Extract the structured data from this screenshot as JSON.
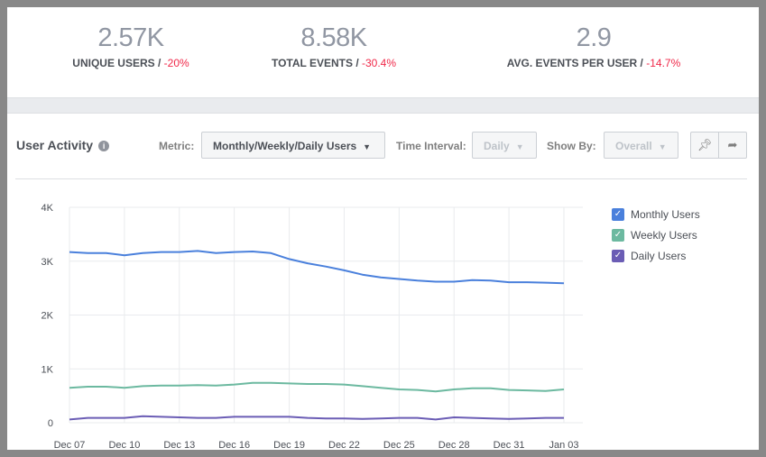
{
  "stats": [
    {
      "value": "2.57K",
      "label": "UNIQUE USERS",
      "change": "-20%"
    },
    {
      "value": "8.58K",
      "label": "TOTAL EVENTS",
      "change": "-30.4%"
    },
    {
      "value": "2.9",
      "label": "AVG. EVENTS PER USER",
      "change": "-14.7%"
    }
  ],
  "header": {
    "title": "User Activity",
    "info_icon": "i",
    "metric_label": "Metric:",
    "metric_value": "Monthly/Weekly/Daily Users",
    "interval_label": "Time Interval:",
    "interval_value": "Daily",
    "showby_label": "Show By:",
    "showby_value": "Overall",
    "pin_icon": "pin-icon",
    "share_icon": "share-icon"
  },
  "chart_data": {
    "type": "line",
    "x": [
      "Dec 07",
      "Dec 08",
      "Dec 09",
      "Dec 10",
      "Dec 11",
      "Dec 12",
      "Dec 13",
      "Dec 14",
      "Dec 15",
      "Dec 16",
      "Dec 17",
      "Dec 18",
      "Dec 19",
      "Dec 20",
      "Dec 21",
      "Dec 22",
      "Dec 23",
      "Dec 24",
      "Dec 25",
      "Dec 26",
      "Dec 27",
      "Dec 28",
      "Dec 29",
      "Dec 30",
      "Dec 31",
      "Jan 01",
      "Jan 02",
      "Jan 03"
    ],
    "xticks": [
      "Dec 07",
      "Dec 10",
      "Dec 13",
      "Dec 16",
      "Dec 19",
      "Dec 22",
      "Dec 25",
      "Dec 28",
      "Dec 31",
      "Jan 03"
    ],
    "yticks": [
      "0",
      "1K",
      "2K",
      "3K",
      "4K"
    ],
    "ylim": [
      0,
      4000
    ],
    "grid": true,
    "legend_position": "right",
    "series": [
      {
        "name": "Monthly Users",
        "color": "#4a80dc",
        "values": [
          3170,
          3150,
          3150,
          3110,
          3150,
          3170,
          3170,
          3190,
          3150,
          3170,
          3180,
          3150,
          3040,
          2960,
          2900,
          2830,
          2750,
          2700,
          2670,
          2640,
          2620,
          2620,
          2650,
          2640,
          2610,
          2610,
          2600,
          2590
        ]
      },
      {
        "name": "Weekly Users",
        "color": "#6cb9a0",
        "values": [
          650,
          670,
          670,
          650,
          680,
          690,
          690,
          700,
          690,
          710,
          740,
          740,
          730,
          720,
          720,
          710,
          680,
          650,
          620,
          610,
          580,
          620,
          640,
          640,
          610,
          600,
          590,
          620
        ]
      },
      {
        "name": "Daily Users",
        "color": "#6b5db5",
        "values": [
          60,
          90,
          90,
          90,
          120,
          110,
          100,
          90,
          90,
          110,
          110,
          110,
          110,
          90,
          80,
          80,
          70,
          80,
          90,
          90,
          60,
          100,
          90,
          80,
          70,
          80,
          90,
          90
        ]
      }
    ]
  }
}
